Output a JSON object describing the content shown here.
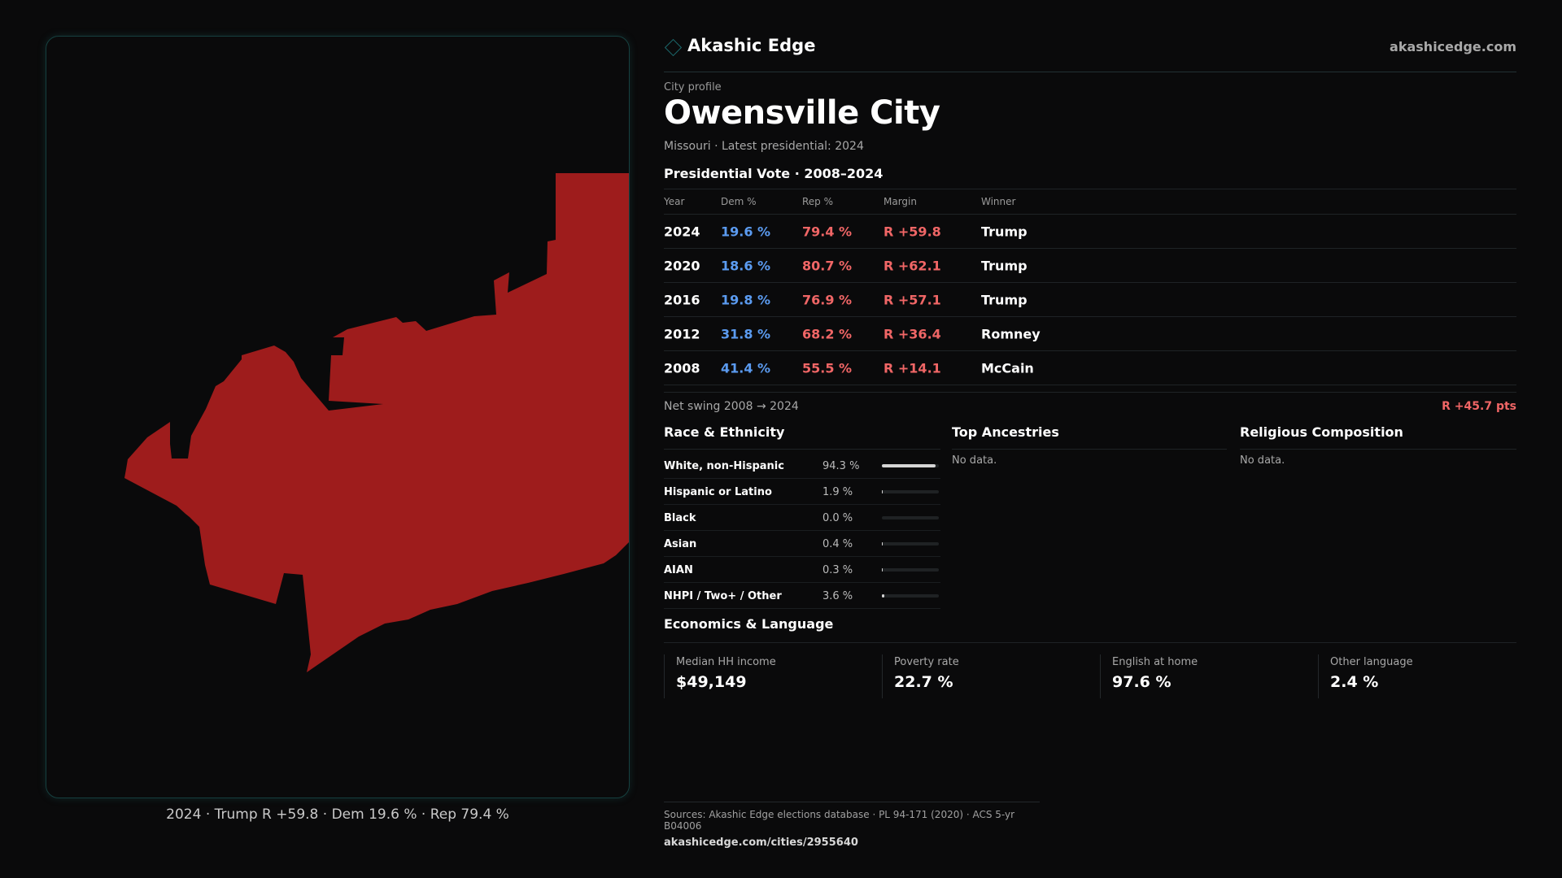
{
  "map": {
    "fill_color": "#9e1c1c",
    "caption": {
      "year": "2024",
      "winner": "Trump",
      "margin": "R +59.8",
      "dem": "Dem 19.6 %",
      "rep": "Rep 79.4 %",
      "sep": "·"
    }
  },
  "header": {
    "brand": "Akashic Edge",
    "site": "akashicedge.com"
  },
  "profile": {
    "eyebrow": "City profile",
    "name": "Owensville City",
    "subtitle": "Missouri · Latest presidential: 2024"
  },
  "vote": {
    "title": "Presidential Vote · 2008–2024",
    "columns": [
      "Year",
      "Dem %",
      "Rep %",
      "Margin",
      "Winner"
    ],
    "rows": [
      {
        "year": "2024",
        "dem": "19.6 %",
        "rep": "79.4 %",
        "margin": "R +59.8",
        "winner": "Trump"
      },
      {
        "year": "2020",
        "dem": "18.6 %",
        "rep": "80.7 %",
        "margin": "R +62.1",
        "winner": "Trump"
      },
      {
        "year": "2016",
        "dem": "19.8 %",
        "rep": "76.9 %",
        "margin": "R +57.1",
        "winner": "Trump"
      },
      {
        "year": "2012",
        "dem": "31.8 %",
        "rep": "68.2 %",
        "margin": "R +36.4",
        "winner": "Romney"
      },
      {
        "year": "2008",
        "dem": "41.4 %",
        "rep": "55.5 %",
        "margin": "R +14.1",
        "winner": "McCain"
      }
    ],
    "swing_label": "Net swing 2008 → 2024",
    "swing_value": "R +45.7 pts"
  },
  "race": {
    "title": "Race & Ethnicity",
    "rows": [
      {
        "label": "White, non-Hispanic",
        "value": "94.3 %",
        "pct": 94.3
      },
      {
        "label": "Hispanic or Latino",
        "value": "1.9 %",
        "pct": 1.9
      },
      {
        "label": "Black",
        "value": "0.0 %",
        "pct": 0.0
      },
      {
        "label": "Asian",
        "value": "0.4 %",
        "pct": 0.4
      },
      {
        "label": "AIAN",
        "value": "0.3 %",
        "pct": 0.3
      },
      {
        "label": "NHPI / Two+ / Other",
        "value": "3.6 %",
        "pct": 3.6
      }
    ]
  },
  "ancestries": {
    "title": "Top Ancestries",
    "empty": "No data."
  },
  "religion": {
    "title": "Religious Composition",
    "empty": "No data."
  },
  "economics": {
    "title": "Economics & Language",
    "cards": [
      {
        "label": "Median HH income",
        "value": "$49,149"
      },
      {
        "label": "Poverty rate",
        "value": "22.7 %"
      },
      {
        "label": "English at home",
        "value": "97.6 %"
      },
      {
        "label": "Other language",
        "value": "2.4 %"
      }
    ]
  },
  "footer": {
    "sources": "Sources: Akashic Edge elections database · PL 94-171 (2020) · ACS 5-yr B04006",
    "url": "akashicedge.com/cities/2955640"
  },
  "colors": {
    "dem": "#5b9bf0",
    "rep": "#f06666",
    "map_fill": "#9e1c1c",
    "accent": "#1c6a6d"
  }
}
